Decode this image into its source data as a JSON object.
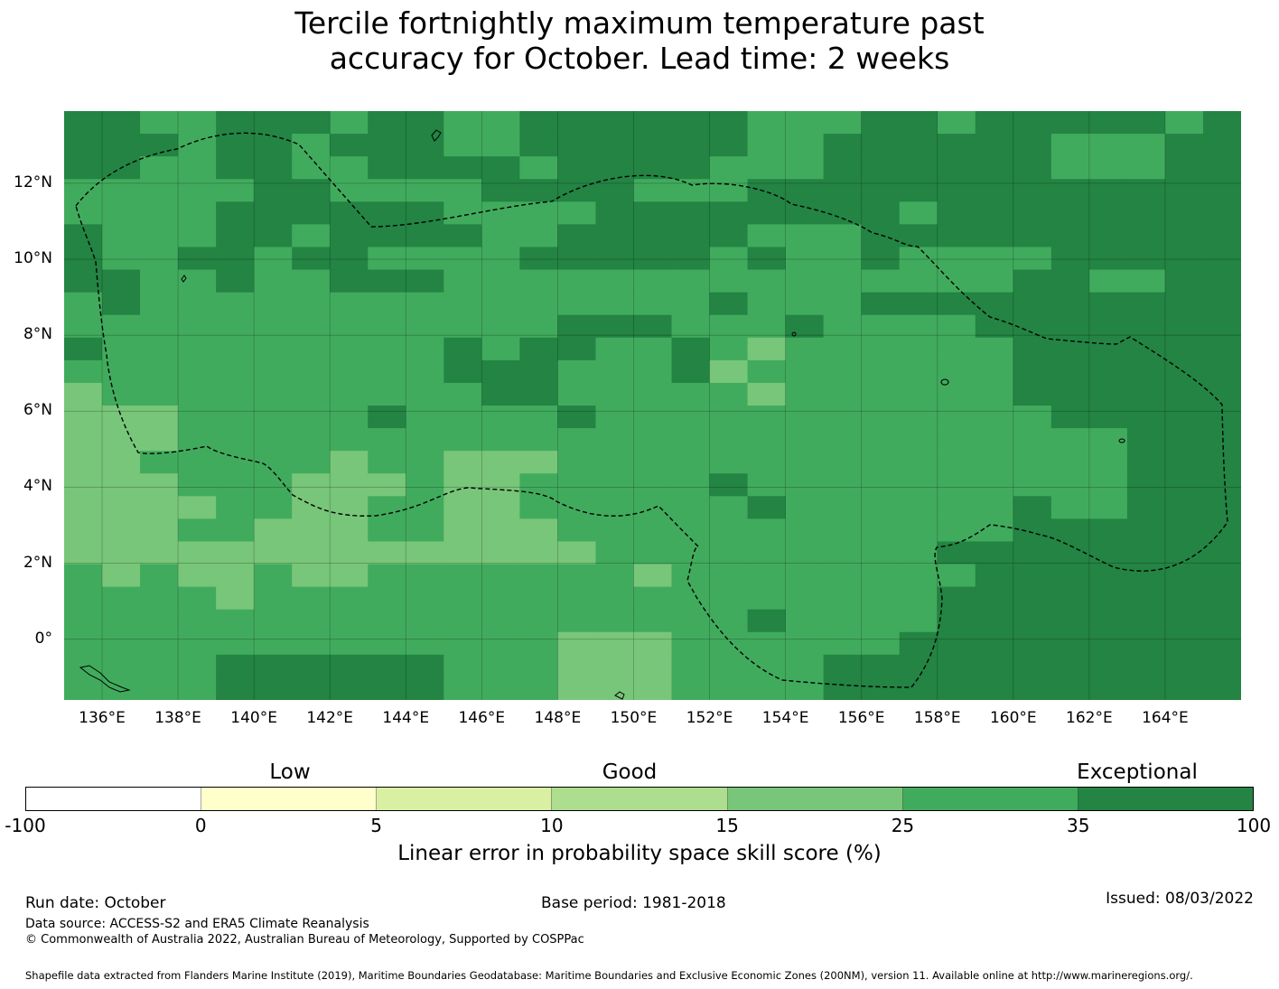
{
  "title_line1": "Tercile fortnightly maximum temperature past",
  "title_line2": "accuracy for October. Lead time: 2 weeks",
  "map": {
    "lon_range": [
      135,
      166
    ],
    "lat_range": [
      -1.6,
      13.9
    ],
    "cell_deg": 0.83,
    "lat_labels": [
      "12°N",
      "10°N",
      "8°N",
      "6°N",
      "4°N",
      "2°N",
      "0°"
    ],
    "lon_labels": [
      "136°E",
      "138°E",
      "140°E",
      "142°E",
      "144°E",
      "146°E",
      "148°E",
      "150°E",
      "152°E",
      "154°E",
      "156°E",
      "158°E",
      "160°E",
      "162°E",
      "164°E"
    ],
    "category_colors": {
      "3": "#78c679",
      "4": "#41ab5d",
      "5": "#238443"
    },
    "boundary_color": "#000000",
    "grid": [
      "5544555455445555554445545555545",
      "5554554555445555554455555544455",
      "5544554455554555544455555544455",
      "4444455444455554445555555555555",
      "4444555555444455555555455555555",
      "5444554555544555554445555555555",
      "5445545544445555545445444455555",
      "5544544555444444444444444554455",
      "4544444444444444454445555555555",
      "4444444444444555444544445555555",
      "5444444444545544543444444555555",
      "4444444444555444534444444555555",
      "3444444444455444443444444555555",
      "3334444454444544444444444455555",
      "3334444444444444444444444444555",
      "3344444344333444444444444444555",
      "3334443334334444454444444444555",
      "3333443344334444445444444544555",
      "3334433344333444444444444555555",
      "3333333333333344444444455555555",
      "4343343344444443444444445555555",
      "4444344444444444444444455555555",
      "4444444444444444445444455555555",
      "4444444444444333444444555555555",
      "4444555555444333444455555555555",
      "4444555555444333444455555555555"
    ]
  },
  "colorbar": {
    "categories": [
      "Low",
      "Good",
      "Exceptional"
    ],
    "ticks": [
      "-100",
      "0",
      "5",
      "10",
      "15",
      "25",
      "35",
      "100"
    ],
    "colors": [
      "#ffffff",
      "#ffffcc",
      "#d9f0a3",
      "#addd8e",
      "#78c679",
      "#41ab5d",
      "#238443"
    ],
    "label": "Linear error in probability space skill score (%)"
  },
  "footer": {
    "run_date": "Run date: October",
    "base_period": "Base period: 1981-2018",
    "issued": "Issued: 08/03/2022",
    "data_source": "Data source: ACCESS-S2 and ERA5 Climate Reanalysis",
    "copyright": "© Commonwealth of Australia 2022, Australian Bureau of Meteorology, Supported by COSPPac",
    "shapefile": "Shapefile data extracted from Flanders Marine Institute (2019), Maritime Boundaries Geodatabase: Maritime Boundaries and Exclusive Economic Zones (200NM), version 11. Available online at http://www.marineregions.org/."
  }
}
